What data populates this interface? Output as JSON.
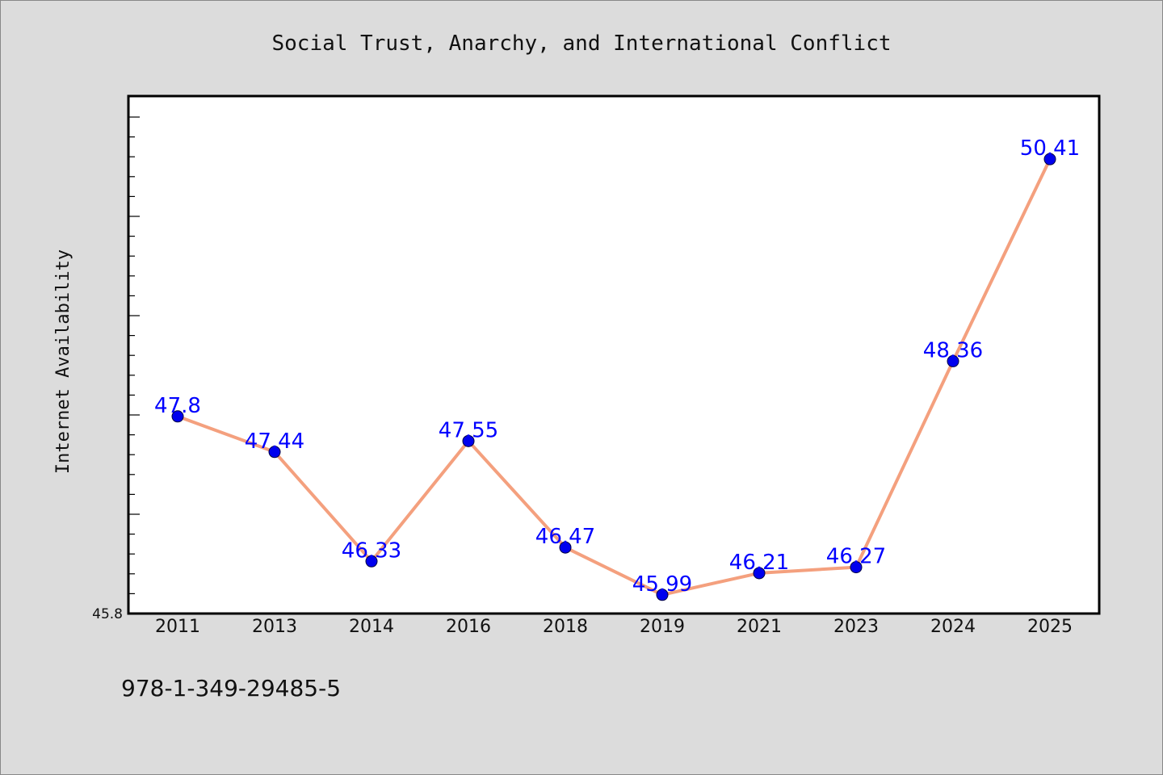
{
  "chart_data": {
    "type": "line",
    "title": "Social Trust, Anarchy, and International Conflict",
    "xlabel": "",
    "ylabel": "Internet Availability",
    "categories": [
      "2011",
      "2013",
      "2014",
      "2016",
      "2018",
      "2019",
      "2021",
      "2023",
      "2024",
      "2025"
    ],
    "values": [
      47.8,
      47.44,
      46.33,
      47.55,
      46.47,
      45.99,
      46.21,
      46.27,
      48.36,
      50.41
    ],
    "data_labels": [
      "47.8",
      "47.44",
      "46.33",
      "47.55",
      "46.47",
      "45.99",
      "46.21",
      "46.27",
      "48.36",
      "50.41"
    ],
    "y_tick_labels": [
      "45.8"
    ],
    "ylim": [
      45.8,
      51.05
    ],
    "grid": false,
    "legend": "none",
    "line_color": "#f4a07e",
    "marker_color": "#0000ee",
    "label_color": "#0000ff"
  },
  "footer_text": "978-1-349-29485-5"
}
